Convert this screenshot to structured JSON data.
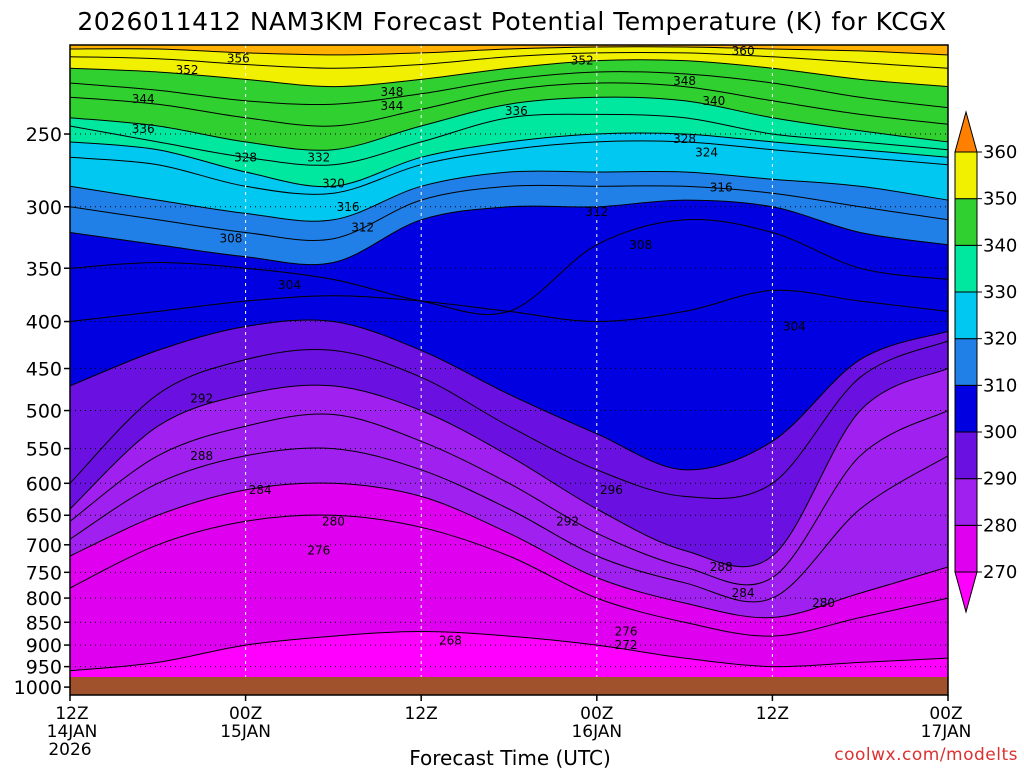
{
  "chart_data": {
    "type": "area",
    "title": "2026011412 NAM3KM Forecast Potential Temperature (K) for KCGX",
    "subtitle": "",
    "xlabel": "Forecast Time (UTC)",
    "ylabel": "",
    "x_ticks": [
      {
        "hour": 0,
        "label": "12Z",
        "sub": "14JAN",
        "sub2": "2026"
      },
      {
        "hour": 12,
        "label": "00Z",
        "sub": "15JAN",
        "sub2": ""
      },
      {
        "hour": 24,
        "label": "12Z",
        "sub": "",
        "sub2": ""
      },
      {
        "hour": 36,
        "label": "00Z",
        "sub": "16JAN",
        "sub2": ""
      },
      {
        "hour": 48,
        "label": "12Z",
        "sub": "",
        "sub2": ""
      },
      {
        "hour": 60,
        "label": "00Z",
        "sub": "17JAN",
        "sub2": ""
      }
    ],
    "xlim_hours": [
      0,
      60
    ],
    "y_ticks": [
      250,
      300,
      350,
      400,
      450,
      500,
      550,
      600,
      650,
      700,
      750,
      800,
      850,
      900,
      950,
      1000
    ],
    "y_tick_labels": [
      "250",
      "300",
      "350",
      "400",
      "450",
      "500",
      "550",
      "600",
      "650",
      "700",
      "750",
      "800",
      "850",
      "900",
      "950",
      "1000"
    ],
    "ylim_pressure": [
      200,
      1020
    ],
    "y_scale": "log",
    "y_inverted": true,
    "grid": true,
    "colorbar": {
      "ticks": [
        "360",
        "350",
        "340",
        "330",
        "320",
        "310",
        "300",
        "290",
        "280",
        "270"
      ],
      "min": 260,
      "max": 370,
      "colors": {
        "260": "#ff00ff",
        "270": "#e000f0",
        "280": "#a020f0",
        "290": "#6a10e0",
        "300": "#0000e0",
        "310": "#2080e8",
        "320": "#00c8f0",
        "330": "#00e8a0",
        "340": "#30d030",
        "350": "#f0f000",
        "360": "#ffb000",
        "370": "#ff8000"
      }
    },
    "series": [
      {
        "name": "",
        "level": 270,
        "x_hours": [
          0,
          6,
          12,
          18,
          24,
          30,
          36,
          42,
          48,
          54,
          60
        ],
        "pressure": [
          960,
          940,
          900,
          880,
          870,
          880,
          900,
          930,
          950,
          940,
          930
        ]
      },
      {
        "name": "",
        "level": 276,
        "x_hours": [
          0,
          6,
          12,
          18,
          24,
          30,
          36,
          42,
          48,
          54,
          60
        ],
        "pressure": [
          780,
          700,
          660,
          650,
          670,
          720,
          800,
          850,
          880,
          840,
          800
        ]
      },
      {
        "name": "",
        "level": 280,
        "x_hours": [
          0,
          6,
          12,
          18,
          24,
          30,
          36,
          42,
          48,
          54,
          60
        ],
        "pressure": [
          720,
          650,
          610,
          600,
          620,
          680,
          760,
          810,
          840,
          790,
          740
        ]
      },
      {
        "name": "",
        "level": 284,
        "x_hours": [
          0,
          6,
          12,
          18,
          24,
          30,
          36,
          42,
          48,
          54,
          60
        ],
        "pressure": [
          690,
          600,
          560,
          550,
          580,
          640,
          720,
          770,
          800,
          640,
          560
        ]
      },
      {
        "name": "",
        "level": 288,
        "x_hours": [
          0,
          6,
          12,
          18,
          24,
          30,
          36,
          42,
          48,
          54,
          60
        ],
        "pressure": [
          660,
          560,
          520,
          505,
          540,
          600,
          680,
          740,
          760,
          560,
          500
        ]
      },
      {
        "name": "",
        "level": 292,
        "x_hours": [
          0,
          6,
          12,
          18,
          24,
          30,
          36,
          42,
          48,
          54,
          60
        ],
        "pressure": [
          640,
          520,
          480,
          470,
          500,
          560,
          640,
          710,
          720,
          500,
          450
        ]
      },
      {
        "name": "",
        "level": 296,
        "x_hours": [
          0,
          6,
          12,
          18,
          24,
          30,
          36,
          42,
          48,
          54,
          60
        ],
        "pressure": [
          600,
          480,
          440,
          430,
          460,
          520,
          580,
          620,
          600,
          460,
          420
        ]
      },
      {
        "name": "",
        "level": 300,
        "x_hours": [
          0,
          6,
          12,
          18,
          24,
          30,
          36,
          42,
          48,
          54,
          60
        ],
        "pressure": [
          470,
          430,
          405,
          400,
          430,
          480,
          530,
          580,
          540,
          440,
          410
        ]
      },
      {
        "name": "",
        "level": 304,
        "x_hours": [
          0,
          6,
          12,
          18,
          24,
          30,
          36,
          42,
          48,
          54,
          60
        ],
        "pressure": [
          400,
          390,
          380,
          375,
          380,
          390,
          400,
          390,
          370,
          380,
          390
        ]
      },
      {
        "name": "",
        "level": 308,
        "x_hours": [
          0,
          6,
          12,
          18,
          24,
          30,
          36,
          42,
          48,
          54,
          60
        ],
        "pressure": [
          350,
          345,
          350,
          360,
          380,
          390,
          330,
          310,
          320,
          350,
          360
        ]
      },
      {
        "name": "",
        "level": 312,
        "x_hours": [
          0,
          6,
          12,
          18,
          24,
          30,
          36,
          42,
          48,
          54,
          60
        ],
        "pressure": [
          320,
          330,
          340,
          345,
          310,
          300,
          300,
          295,
          300,
          320,
          330
        ]
      },
      {
        "name": "",
        "level": 316,
        "x_hours": [
          0,
          6,
          12,
          18,
          24,
          30,
          36,
          42,
          48,
          54,
          60
        ],
        "pressure": [
          300,
          310,
          320,
          325,
          295,
          285,
          285,
          285,
          290,
          300,
          310
        ]
      },
      {
        "name": "",
        "level": 320,
        "x_hours": [
          0,
          6,
          12,
          18,
          24,
          30,
          36,
          42,
          48,
          54,
          60
        ],
        "pressure": [
          285,
          295,
          305,
          310,
          285,
          275,
          275,
          275,
          280,
          285,
          295
        ]
      },
      {
        "name": "",
        "level": 328,
        "x_hours": [
          0,
          6,
          12,
          18,
          24,
          30,
          36,
          42,
          48,
          54,
          60
        ],
        "pressure": [
          265,
          270,
          285,
          290,
          270,
          260,
          255,
          255,
          260,
          265,
          270
        ]
      },
      {
        "name": "",
        "level": 332,
        "x_hours": [
          0,
          6,
          12,
          18,
          24,
          30,
          36,
          42,
          48,
          54,
          60
        ],
        "pressure": [
          255,
          260,
          275,
          285,
          265,
          255,
          250,
          250,
          255,
          260,
          265
        ]
      },
      {
        "name": "",
        "level": 336,
        "x_hours": [
          0,
          6,
          12,
          18,
          24,
          30,
          36,
          42,
          48,
          54,
          60
        ],
        "pressure": [
          245,
          255,
          265,
          270,
          255,
          240,
          238,
          240,
          250,
          255,
          260
        ]
      },
      {
        "name": "",
        "level": 340,
        "x_hours": [
          0,
          6,
          12,
          18,
          24,
          30,
          36,
          42,
          48,
          54,
          60
        ],
        "pressure": [
          240,
          245,
          255,
          260,
          245,
          232,
          228,
          230,
          240,
          248,
          255
        ]
      },
      {
        "name": "",
        "level": 344,
        "x_hours": [
          0,
          6,
          12,
          18,
          24,
          30,
          36,
          42,
          48,
          54,
          60
        ],
        "pressure": [
          228,
          232,
          240,
          245,
          235,
          224,
          220,
          222,
          230,
          238,
          244
        ]
      },
      {
        "name": "",
        "level": 348,
        "x_hours": [
          0,
          6,
          12,
          18,
          24,
          30,
          36,
          42,
          48,
          54,
          60
        ],
        "pressure": [
          220,
          224,
          230,
          232,
          226,
          218,
          214,
          215,
          220,
          228,
          234
        ]
      },
      {
        "name": "",
        "level": 352,
        "x_hours": [
          0,
          6,
          12,
          18,
          24,
          30,
          36,
          42,
          48,
          54,
          60
        ],
        "pressure": [
          212,
          214,
          218,
          222,
          218,
          212,
          208,
          208,
          212,
          218,
          222
        ]
      },
      {
        "name": "",
        "level": 356,
        "x_hours": [
          0,
          6,
          12,
          18,
          24,
          30,
          36,
          42,
          48,
          54,
          60
        ],
        "pressure": [
          206,
          207,
          210,
          212,
          210,
          206,
          204,
          204,
          206,
          209,
          212
        ]
      },
      {
        "name": "",
        "level": 360,
        "x_hours": [
          0,
          6,
          12,
          18,
          24,
          30,
          36,
          42,
          48,
          54,
          60
        ],
        "pressure": [
          202,
          202,
          204,
          205,
          204,
          202,
          201,
          201,
          202,
          203,
          205
        ]
      }
    ],
    "contour_labels": [
      {
        "text": "356",
        "hour": 11.5,
        "pressure": 207
      },
      {
        "text": "352",
        "hour": 8.0,
        "pressure": 213
      },
      {
        "text": "344",
        "hour": 5.0,
        "pressure": 229
      },
      {
        "text": "336",
        "hour": 5.0,
        "pressure": 247
      },
      {
        "text": "328",
        "hour": 12.0,
        "pressure": 265
      },
      {
        "text": "332",
        "hour": 17.0,
        "pressure": 265
      },
      {
        "text": "320",
        "hour": 18.0,
        "pressure": 283
      },
      {
        "text": "316",
        "hour": 19.0,
        "pressure": 300
      },
      {
        "text": "312",
        "hour": 20.0,
        "pressure": 316
      },
      {
        "text": "308",
        "hour": 11.0,
        "pressure": 325
      },
      {
        "text": "304",
        "hour": 15.0,
        "pressure": 365
      },
      {
        "text": "348",
        "hour": 22.0,
        "pressure": 225
      },
      {
        "text": "344",
        "hour": 22.0,
        "pressure": 233
      },
      {
        "text": "336",
        "hour": 30.5,
        "pressure": 236
      },
      {
        "text": "352",
        "hour": 35.0,
        "pressure": 208
      },
      {
        "text": "348",
        "hour": 42.0,
        "pressure": 219
      },
      {
        "text": "360",
        "hour": 46.0,
        "pressure": 203
      },
      {
        "text": "340",
        "hour": 44.0,
        "pressure": 230
      },
      {
        "text": "328",
        "hour": 42.0,
        "pressure": 253
      },
      {
        "text": "324",
        "hour": 43.5,
        "pressure": 262
      },
      {
        "text": "316",
        "hour": 44.5,
        "pressure": 286
      },
      {
        "text": "312",
        "hour": 36.0,
        "pressure": 304
      },
      {
        "text": "308",
        "hour": 39.0,
        "pressure": 330
      },
      {
        "text": "304",
        "hour": 49.5,
        "pressure": 405
      },
      {
        "text": "292",
        "hour": 9.0,
        "pressure": 485
      },
      {
        "text": "288",
        "hour": 9.0,
        "pressure": 560
      },
      {
        "text": "284",
        "hour": 13.0,
        "pressure": 610
      },
      {
        "text": "280",
        "hour": 18.0,
        "pressure": 660
      },
      {
        "text": "276",
        "hour": 17.0,
        "pressure": 710
      },
      {
        "text": "296",
        "hour": 37.0,
        "pressure": 610
      },
      {
        "text": "292",
        "hour": 34.0,
        "pressure": 660
      },
      {
        "text": "288",
        "hour": 44.5,
        "pressure": 740
      },
      {
        "text": "284",
        "hour": 46.0,
        "pressure": 790
      },
      {
        "text": "280",
        "hour": 51.5,
        "pressure": 810
      },
      {
        "text": "276",
        "hour": 38.0,
        "pressure": 870
      },
      {
        "text": "272",
        "hour": 38.0,
        "pressure": 900
      },
      {
        "text": "268",
        "hour": 26.0,
        "pressure": 890
      }
    ],
    "surface": {
      "color": "#a0522d",
      "pressure": 975
    }
  },
  "credit": "coolwx.com/modelts"
}
